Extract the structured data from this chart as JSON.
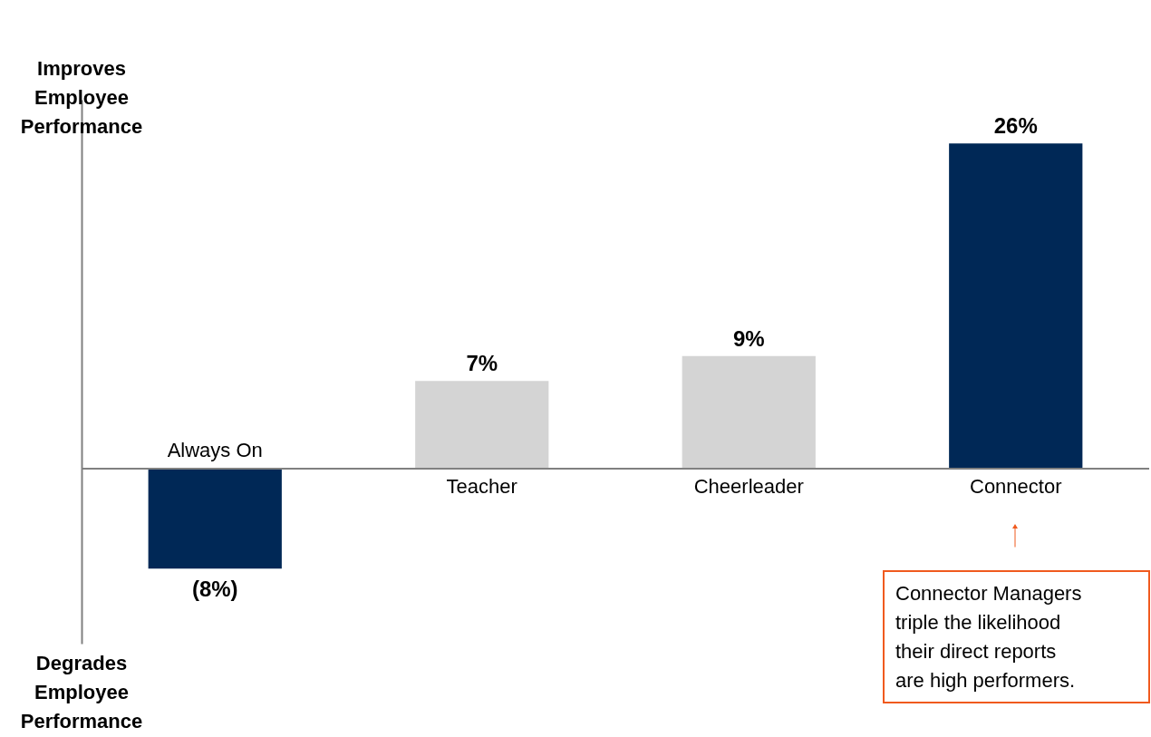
{
  "chart_data": {
    "type": "bar",
    "categories": [
      "Always On",
      "Teacher",
      "Cheerleader",
      "Connector"
    ],
    "values": [
      -8,
      7,
      9,
      26
    ],
    "colors": [
      "#002856",
      "#d4d4d4",
      "#d4d4d4",
      "#002856"
    ],
    "value_labels": [
      "(8%)",
      "7%",
      "9%",
      "26%"
    ],
    "ylim": [
      -14,
      29.5
    ],
    "tick_labels": "x",
    "annotations": [
      "Improves Employee Performance",
      "Degrades Employee Performance",
      "Connector Managers triple the likelihood their direct reports are high performers."
    ]
  }
}
